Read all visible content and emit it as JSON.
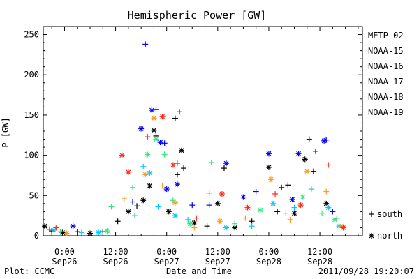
{
  "chart_data": {
    "type": "scatter",
    "title": "Hemispheric Power [GW]",
    "ylabel": "P [GW]",
    "xlabel": "Date and Time",
    "ylim": [
      0,
      260
    ],
    "y_ticks": [
      0,
      50,
      100,
      150,
      200,
      250
    ],
    "xlim": [
      "2011-09-25 19:00",
      "2011-09-28 22:00"
    ],
    "x_ticks": [
      {
        "time": "2011-09-26 00:00",
        "line1": "0:00",
        "line2": "Sep26"
      },
      {
        "time": "2011-09-26 12:00",
        "line1": "12:00",
        "line2": "Sep26"
      },
      {
        "time": "2011-09-27 00:00",
        "line1": "0:00",
        "line2": "Sep27"
      },
      {
        "time": "2011-09-27 12:00",
        "line1": "12:00",
        "line2": "Sep27"
      },
      {
        "time": "2011-09-28 00:00",
        "line1": "0:00",
        "line2": "Sep28"
      },
      {
        "time": "2011-09-28 12:00",
        "line1": "12:00",
        "line2": "Sep28"
      }
    ],
    "marker_legend": [
      {
        "marker": "+",
        "label": "south"
      },
      {
        "marker": "*",
        "label": "north"
      }
    ],
    "series": [
      {
        "name": "METP-02",
        "color": "#000000",
        "points": [
          {
            "t": "2011-09-25 19:20",
            "v": 12,
            "m": "*"
          },
          {
            "t": "2011-09-25 21:00",
            "v": 6,
            "m": "+"
          },
          {
            "t": "2011-09-25 23:30",
            "v": 4,
            "m": "*"
          },
          {
            "t": "2011-09-26 03:00",
            "v": 5,
            "m": "+"
          },
          {
            "t": "2011-09-26 06:00",
            "v": 3,
            "m": "*"
          },
          {
            "t": "2011-09-26 09:00",
            "v": 5,
            "m": "+"
          },
          {
            "t": "2011-09-26 12:30",
            "v": 18,
            "m": "+"
          },
          {
            "t": "2011-09-26 15:00",
            "v": 30,
            "m": "*"
          },
          {
            "t": "2011-09-26 17:00",
            "v": 37,
            "m": "+"
          },
          {
            "t": "2011-09-26 18:30",
            "v": 44,
            "m": "*"
          },
          {
            "t": "2011-09-26 20:00",
            "v": 62,
            "m": "*"
          },
          {
            "t": "2011-09-26 21:00",
            "v": 131,
            "m": "*"
          },
          {
            "t": "2011-09-26 21:30",
            "v": 124,
            "m": "+"
          },
          {
            "t": "2011-09-27 00:30",
            "v": 30,
            "m": "*"
          },
          {
            "t": "2011-09-27 02:00",
            "v": 146,
            "m": "+"
          },
          {
            "t": "2011-09-27 02:30",
            "v": 76,
            "m": "+"
          },
          {
            "t": "2011-09-27 03:30",
            "v": 106,
            "m": "*"
          },
          {
            "t": "2011-09-27 04:00",
            "v": 84,
            "m": "+"
          },
          {
            "t": "2011-09-27 06:30",
            "v": 16,
            "m": "*"
          },
          {
            "t": "2011-09-27 09:30",
            "v": 12,
            "m": "+"
          },
          {
            "t": "2011-09-27 12:00",
            "v": 40,
            "m": "*"
          },
          {
            "t": "2011-09-27 13:30",
            "v": 84,
            "m": "+"
          },
          {
            "t": "2011-09-27 16:00",
            "v": 10,
            "m": "*"
          },
          {
            "t": "2011-09-27 20:00",
            "v": 18,
            "m": "+"
          },
          {
            "t": "2011-09-28 00:00",
            "v": 85,
            "m": "*"
          },
          {
            "t": "2011-09-28 02:00",
            "v": 30,
            "m": "+"
          },
          {
            "t": "2011-09-28 04:30",
            "v": 63,
            "m": "+"
          },
          {
            "t": "2011-09-28 06:00",
            "v": 28,
            "m": "*"
          },
          {
            "t": "2011-09-28 08:30",
            "v": 95,
            "m": "*"
          },
          {
            "t": "2011-09-28 10:30",
            "v": 80,
            "m": "+"
          },
          {
            "t": "2011-09-28 13:30",
            "v": 40,
            "m": "*"
          },
          {
            "t": "2011-09-28 16:00",
            "v": 22,
            "m": "+"
          }
        ]
      },
      {
        "name": "NOAA-15",
        "color": "#0000ff",
        "points": [
          {
            "t": "2011-09-25 20:30",
            "v": 8,
            "m": "+"
          },
          {
            "t": "2011-09-26 02:00",
            "v": 12,
            "m": "*"
          },
          {
            "t": "2011-09-26 16:00",
            "v": 42,
            "m": "+"
          },
          {
            "t": "2011-09-26 18:00",
            "v": 133,
            "m": "*"
          },
          {
            "t": "2011-09-26 19:00",
            "v": 238,
            "m": "+"
          },
          {
            "t": "2011-09-26 20:30",
            "v": 156,
            "m": "*"
          },
          {
            "t": "2011-09-26 21:30",
            "v": 157,
            "m": "+"
          },
          {
            "t": "2011-09-26 22:30",
            "v": 116,
            "m": "*"
          },
          {
            "t": "2011-09-26 23:30",
            "v": 115,
            "m": "+"
          },
          {
            "t": "2011-09-27 00:00",
            "v": 58,
            "m": "*"
          },
          {
            "t": "2011-09-27 02:30",
            "v": 64,
            "m": "*"
          },
          {
            "t": "2011-09-27 03:00",
            "v": 154,
            "m": "+"
          },
          {
            "t": "2011-09-27 06:00",
            "v": 38,
            "m": "+"
          },
          {
            "t": "2011-09-27 10:00",
            "v": 38,
            "m": "+"
          },
          {
            "t": "2011-09-27 14:00",
            "v": 90,
            "m": "*"
          },
          {
            "t": "2011-09-27 18:00",
            "v": 48,
            "m": "*"
          },
          {
            "t": "2011-09-27 21:00",
            "v": 55,
            "m": "+"
          },
          {
            "t": "2011-09-28 00:00",
            "v": 102,
            "m": "*"
          },
          {
            "t": "2011-09-28 03:00",
            "v": 60,
            "m": "+"
          },
          {
            "t": "2011-09-28 05:30",
            "v": 45,
            "m": "*"
          },
          {
            "t": "2011-09-28 07:00",
            "v": 102,
            "m": "*"
          },
          {
            "t": "2011-09-28 09:30",
            "v": 120,
            "m": "+"
          },
          {
            "t": "2011-09-28 11:00",
            "v": 105,
            "m": "+"
          },
          {
            "t": "2011-09-28 13:00",
            "v": 118,
            "m": "*"
          },
          {
            "t": "2011-09-28 13:30",
            "v": 119,
            "m": "+"
          },
          {
            "t": "2011-09-28 15:00",
            "v": 30,
            "m": "+"
          }
        ]
      },
      {
        "name": "NOAA-16",
        "color": "#00c8ff",
        "points": [
          {
            "t": "2011-09-25 21:30",
            "v": 7,
            "m": "*"
          },
          {
            "t": "2011-09-26 04:00",
            "v": 4,
            "m": "+"
          },
          {
            "t": "2011-09-26 08:00",
            "v": 4,
            "m": "*"
          },
          {
            "t": "2011-09-26 16:30",
            "v": 25,
            "m": "+"
          },
          {
            "t": "2011-09-26 18:30",
            "v": 86,
            "m": "+"
          },
          {
            "t": "2011-09-26 20:00",
            "v": 78,
            "m": "*"
          },
          {
            "t": "2011-09-26 22:00",
            "v": 36,
            "m": "+"
          },
          {
            "t": "2011-09-27 02:00",
            "v": 25,
            "m": "*"
          },
          {
            "t": "2011-09-27 05:00",
            "v": 20,
            "m": "+"
          },
          {
            "t": "2011-09-27 10:00",
            "v": 53,
            "m": "+"
          },
          {
            "t": "2011-09-27 14:00",
            "v": 10,
            "m": "*"
          },
          {
            "t": "2011-09-27 20:00",
            "v": 12,
            "m": "+"
          },
          {
            "t": "2011-09-28 01:00",
            "v": 40,
            "m": "*"
          },
          {
            "t": "2011-09-28 06:00",
            "v": 35,
            "m": "+"
          },
          {
            "t": "2011-09-28 10:00",
            "v": 58,
            "m": "+"
          },
          {
            "t": "2011-09-28 14:00",
            "v": 35,
            "m": "*"
          },
          {
            "t": "2011-09-28 16:30",
            "v": 12,
            "m": "*"
          }
        ]
      },
      {
        "name": "NOAA-17",
        "color": "#30e880",
        "points": [
          {
            "t": "2011-09-25 23:00",
            "v": 5,
            "m": "+"
          },
          {
            "t": "2011-09-26 10:00",
            "v": 6,
            "m": "*"
          },
          {
            "t": "2011-09-26 11:00",
            "v": 36,
            "m": "+"
          },
          {
            "t": "2011-09-26 16:00",
            "v": 60,
            "m": "+"
          },
          {
            "t": "2011-09-26 19:30",
            "v": 101,
            "m": "*"
          },
          {
            "t": "2011-09-26 21:30",
            "v": 120,
            "m": "*"
          },
          {
            "t": "2011-09-26 23:30",
            "v": 101,
            "m": "+"
          },
          {
            "t": "2011-09-27 01:30",
            "v": 44,
            "m": "+"
          },
          {
            "t": "2011-09-27 05:30",
            "v": 15,
            "m": "*"
          },
          {
            "t": "2011-09-27 10:30",
            "v": 91,
            "m": "+"
          },
          {
            "t": "2011-09-27 16:00",
            "v": 15,
            "m": "+"
          },
          {
            "t": "2011-09-27 22:00",
            "v": 32,
            "m": "*"
          },
          {
            "t": "2011-09-28 04:00",
            "v": 28,
            "m": "+"
          },
          {
            "t": "2011-09-28 08:00",
            "v": 48,
            "m": "*"
          },
          {
            "t": "2011-09-28 12:30",
            "v": 28,
            "m": "+"
          },
          {
            "t": "2011-09-28 15:30",
            "v": 20,
            "m": "*"
          }
        ]
      },
      {
        "name": "NOAA-18",
        "color": "#ff9a1a",
        "points": [
          {
            "t": "2011-09-26 00:30",
            "v": 3,
            "m": "*"
          },
          {
            "t": "2011-09-26 14:00",
            "v": 46,
            "m": "+"
          },
          {
            "t": "2011-09-26 19:00",
            "v": 76,
            "m": "*"
          },
          {
            "t": "2011-09-26 21:00",
            "v": 146,
            "m": "*"
          },
          {
            "t": "2011-09-26 23:00",
            "v": 62,
            "m": "+"
          },
          {
            "t": "2011-09-27 02:00",
            "v": 41,
            "m": "*"
          },
          {
            "t": "2011-09-27 06:30",
            "v": 10,
            "m": "+"
          },
          {
            "t": "2011-09-27 12:30",
            "v": 18,
            "m": "*"
          },
          {
            "t": "2011-09-27 18:30",
            "v": 22,
            "m": "+"
          },
          {
            "t": "2011-09-28 00:30",
            "v": 70,
            "m": "*"
          },
          {
            "t": "2011-09-28 05:00",
            "v": 20,
            "m": "+"
          },
          {
            "t": "2011-09-28 09:00",
            "v": 80,
            "m": "*"
          },
          {
            "t": "2011-09-28 13:30",
            "v": 55,
            "m": "+"
          },
          {
            "t": "2011-09-28 17:00",
            "v": 12,
            "m": "*"
          }
        ]
      },
      {
        "name": "NOAA-19",
        "color": "#ff2a1a",
        "points": [
          {
            "t": "2011-09-25 22:00",
            "v": 10,
            "m": "+"
          },
          {
            "t": "2011-09-26 13:30",
            "v": 100,
            "m": "*"
          },
          {
            "t": "2011-09-26 15:00",
            "v": 79,
            "m": "*"
          },
          {
            "t": "2011-09-26 19:30",
            "v": 123,
            "m": "+"
          },
          {
            "t": "2011-09-26 23:00",
            "v": 148,
            "m": "*"
          },
          {
            "t": "2011-09-27 01:30",
            "v": 88,
            "m": "*"
          },
          {
            "t": "2011-09-27 02:30",
            "v": 90,
            "m": "+"
          },
          {
            "t": "2011-09-27 07:00",
            "v": 22,
            "m": "+"
          },
          {
            "t": "2011-09-27 13:00",
            "v": 52,
            "m": "*"
          },
          {
            "t": "2011-09-27 19:00",
            "v": 35,
            "m": "*"
          },
          {
            "t": "2011-09-28 01:30",
            "v": 52,
            "m": "+"
          },
          {
            "t": "2011-09-28 07:30",
            "v": 38,
            "m": "*"
          },
          {
            "t": "2011-09-28 14:00",
            "v": 88,
            "m": "+"
          },
          {
            "t": "2011-09-28 17:30",
            "v": 10,
            "m": "*"
          }
        ]
      }
    ]
  },
  "footer": {
    "left": "Plot: CCMC",
    "right": "2011/09/28 19:20:07"
  }
}
